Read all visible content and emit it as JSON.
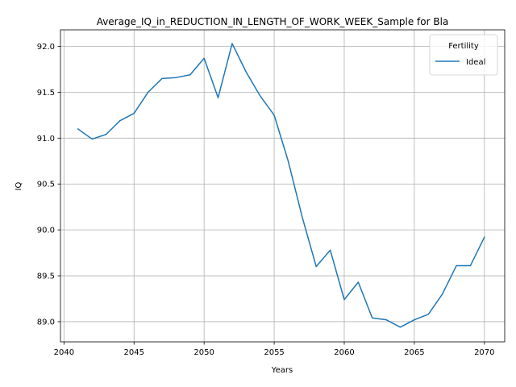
{
  "chart_data": {
    "type": "line",
    "title": "Average_IQ_in_REDUCTION_IN_LENGTH_OF_WORK_WEEK_Sample for Bla",
    "xlabel": "Years",
    "ylabel": "IQ",
    "xlim": [
      2039.75,
      2071.45
    ],
    "ylim": [
      88.78,
      92.18
    ],
    "xticks": [
      2040,
      2045,
      2050,
      2055,
      2060,
      2065,
      2070
    ],
    "yticks": [
      89.0,
      89.5,
      90.0,
      90.5,
      91.0,
      91.5,
      92.0
    ],
    "xtick_labels": [
      "2040",
      "2045",
      "2050",
      "2055",
      "2060",
      "2065",
      "2070"
    ],
    "ytick_labels": [
      "89.0",
      "89.5",
      "90.0",
      "90.5",
      "91.0",
      "91.5",
      "92.0"
    ],
    "grid": true,
    "legend": {
      "title": "Fertility",
      "placement": "top-right"
    },
    "series": [
      {
        "name": "Ideal",
        "color": "#1f77b4",
        "x": [
          2041,
          2042,
          2043,
          2044,
          2045,
          2046,
          2047,
          2048,
          2049,
          2050,
          2051,
          2052,
          2053,
          2054,
          2055,
          2056,
          2057,
          2058,
          2059,
          2060,
          2061,
          2062,
          2063,
          2064,
          2065,
          2066,
          2067,
          2068,
          2069,
          2070
        ],
        "y": [
          91.1,
          90.99,
          91.04,
          91.19,
          91.27,
          91.5,
          91.65,
          91.66,
          91.69,
          91.87,
          91.44,
          92.03,
          91.72,
          91.46,
          91.25,
          90.75,
          90.14,
          89.6,
          89.78,
          89.24,
          89.43,
          89.04,
          89.02,
          88.94,
          89.02,
          89.08,
          89.3,
          89.61,
          89.61,
          89.92
        ]
      }
    ]
  }
}
